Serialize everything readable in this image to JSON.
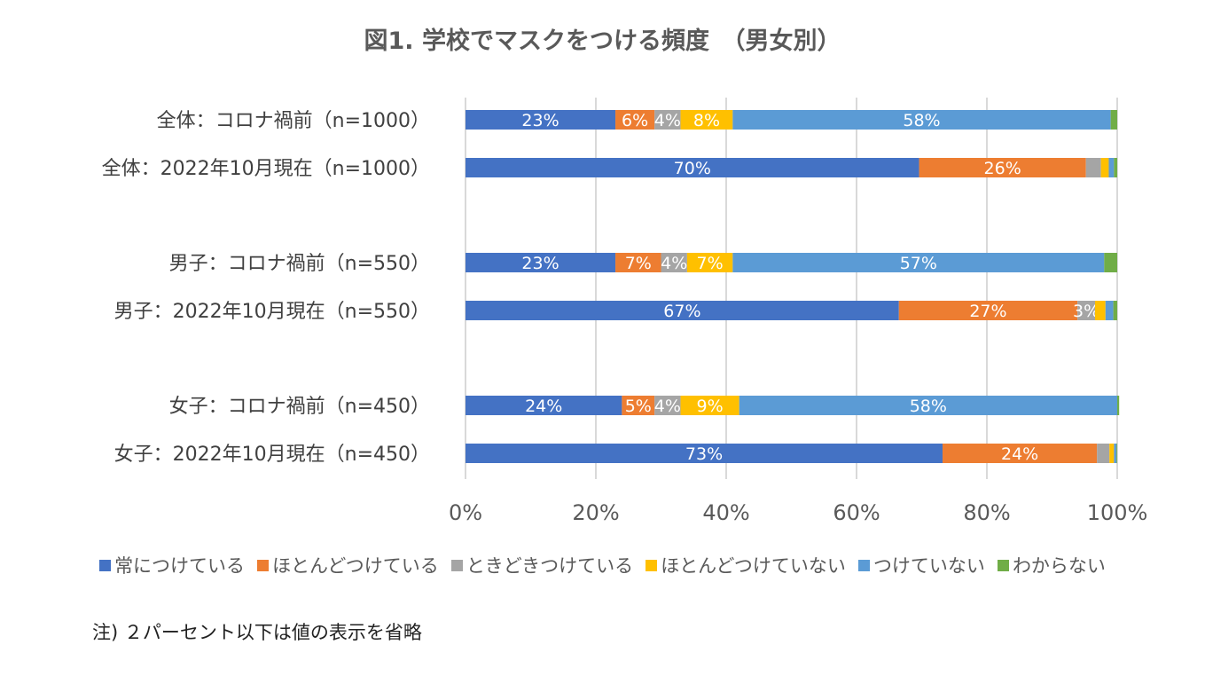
{
  "chart_data": {
    "type": "bar",
    "orientation": "horizontal",
    "stacked": "percent",
    "title": "図1. 学校でマスクをつける頻度　（男女別）",
    "categories": [
      "全体：コロナ禍前（n=1000）",
      "全体：2022年10月現在（n=1000）",
      "男子：コロナ禍前（n=550）",
      "男子：2022年10月現在（n=550）",
      "女子：コロナ禍前（n=450）",
      "女子：2022年10月現在（n=450）"
    ],
    "series": [
      {
        "name": "常につけている",
        "color": "#4472C4",
        "values": [
          23,
          69.6,
          23,
          66.5,
          24,
          73.2
        ]
      },
      {
        "name": "ほとんどつけている",
        "color": "#ED7D31",
        "values": [
          6,
          25.6,
          7,
          27.4,
          5,
          23.7
        ]
      },
      {
        "name": "ときどきつけている",
        "color": "#A5A5A5",
        "values": [
          4,
          2.3,
          4,
          2.7,
          4,
          1.9
        ]
      },
      {
        "name": "ほとんどつけていない",
        "color": "#FFC000",
        "values": [
          8,
          1.2,
          7,
          1.6,
          9,
          0.7
        ]
      },
      {
        "name": "つけていない",
        "color": "#5B9BD5",
        "values": [
          58,
          0.8,
          57,
          1.2,
          58,
          0.4
        ]
      },
      {
        "name": "わからない",
        "color": "#70AD47",
        "values": [
          1,
          0.5,
          2,
          0.6,
          0.3,
          0.1
        ]
      }
    ],
    "xlim": [
      0,
      100
    ],
    "xticks": [
      "0%",
      "20%",
      "40%",
      "60%",
      "80%",
      "100%"
    ],
    "grid": true,
    "legend_position": "bottom",
    "data_labels": "shown when above 2%"
  },
  "note": "注) ２パーセント以下は値の表示を省略"
}
